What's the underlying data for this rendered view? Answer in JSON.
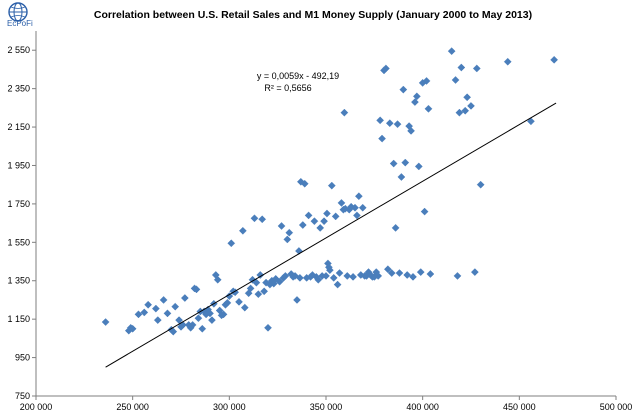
{
  "logo": {
    "text": "EcPoFi"
  },
  "chart_data": {
    "type": "scatter",
    "title": "Correlation between U.S. Retail Sales and M1 Money Supply (January 2000  to May 2013)",
    "xlabel": "",
    "ylabel": "",
    "xlim": [
      200000,
      500000
    ],
    "ylim": [
      750,
      2650
    ],
    "xticks": [
      200000,
      250000,
      300000,
      350000,
      400000,
      450000,
      500000
    ],
    "xtick_labels": [
      "200 000",
      "250 000",
      "300 000",
      "350 000",
      "400 000",
      "450 000",
      "500 000"
    ],
    "yticks": [
      750,
      950,
      1150,
      1350,
      1550,
      1750,
      1950,
      2150,
      2350,
      2550
    ],
    "ytick_labels": [
      "750",
      "950",
      "1 150",
      "1 350",
      "1 550",
      "1 750",
      "1 950",
      "2 150",
      "2 350",
      "2 550"
    ],
    "grid": false,
    "marker_color": "#4a7ebb",
    "trendline": {
      "slope": 0.0059,
      "intercept": -492.19,
      "x_range": [
        236000,
        469000
      ],
      "equation_label": "y = 0,0059x - 492,19",
      "r2_label": "R² = 0,5656",
      "color": "#000000"
    },
    "series": [
      {
        "points": [
          [
            236000,
            1135
          ],
          [
            248000,
            1090
          ],
          [
            249000,
            1105
          ],
          [
            250000,
            1100
          ],
          [
            253000,
            1175
          ],
          [
            256000,
            1185
          ],
          [
            258000,
            1225
          ],
          [
            262000,
            1205
          ],
          [
            263000,
            1145
          ],
          [
            266000,
            1250
          ],
          [
            268000,
            1180
          ],
          [
            270000,
            1095
          ],
          [
            271000,
            1085
          ],
          [
            272000,
            1215
          ],
          [
            274000,
            1145
          ],
          [
            275000,
            1110
          ],
          [
            276000,
            1120
          ],
          [
            277000,
            1260
          ],
          [
            279000,
            1120
          ],
          [
            280000,
            1105
          ],
          [
            281000,
            1120
          ],
          [
            282000,
            1310
          ],
          [
            283000,
            1305
          ],
          [
            284000,
            1155
          ],
          [
            285000,
            1190
          ],
          [
            286000,
            1100
          ],
          [
            287000,
            1190
          ],
          [
            288000,
            1175
          ],
          [
            289000,
            1200
          ],
          [
            290000,
            1180
          ],
          [
            291000,
            1145
          ],
          [
            292000,
            1230
          ],
          [
            293000,
            1380
          ],
          [
            294000,
            1355
          ],
          [
            295000,
            1195
          ],
          [
            296000,
            1170
          ],
          [
            297000,
            1175
          ],
          [
            298000,
            1225
          ],
          [
            299000,
            1235
          ],
          [
            300000,
            1270
          ],
          [
            301000,
            1545
          ],
          [
            302000,
            1295
          ],
          [
            303000,
            1290
          ],
          [
            305000,
            1240
          ],
          [
            307000,
            1610
          ],
          [
            308000,
            1210
          ],
          [
            310000,
            1285
          ],
          [
            311000,
            1310
          ],
          [
            312000,
            1355
          ],
          [
            313000,
            1675
          ],
          [
            314000,
            1340
          ],
          [
            315000,
            1280
          ],
          [
            316000,
            1380
          ],
          [
            317000,
            1670
          ],
          [
            318000,
            1295
          ],
          [
            319000,
            1340
          ],
          [
            320000,
            1105
          ],
          [
            321000,
            1330
          ],
          [
            322000,
            1350
          ],
          [
            323000,
            1335
          ],
          [
            324000,
            1360
          ],
          [
            326000,
            1345
          ],
          [
            327000,
            1635
          ],
          [
            328000,
            1365
          ],
          [
            329000,
            1375
          ],
          [
            330000,
            1565
          ],
          [
            331000,
            1600
          ],
          [
            332000,
            1385
          ],
          [
            333000,
            1370
          ],
          [
            334000,
            1375
          ],
          [
            335000,
            1250
          ],
          [
            336000,
            1505
          ],
          [
            336500,
            1365
          ],
          [
            337000,
            1865
          ],
          [
            338000,
            1640
          ],
          [
            339000,
            1855
          ],
          [
            340000,
            1365
          ],
          [
            341000,
            1690
          ],
          [
            342000,
            1370
          ],
          [
            343000,
            1380
          ],
          [
            344000,
            1660
          ],
          [
            345000,
            1370
          ],
          [
            346000,
            1355
          ],
          [
            347000,
            1625
          ],
          [
            348000,
            1375
          ],
          [
            349000,
            1660
          ],
          [
            350000,
            1375
          ],
          [
            350500,
            1700
          ],
          [
            351000,
            1440
          ],
          [
            351500,
            1420
          ],
          [
            352000,
            1405
          ],
          [
            353000,
            1845
          ],
          [
            354000,
            1365
          ],
          [
            355000,
            1685
          ],
          [
            356000,
            1330
          ],
          [
            357000,
            1390
          ],
          [
            358000,
            1755
          ],
          [
            359000,
            1720
          ],
          [
            359500,
            2225
          ],
          [
            360000,
            1725
          ],
          [
            361000,
            1375
          ],
          [
            362000,
            1720
          ],
          [
            363000,
            1735
          ],
          [
            364000,
            1370
          ],
          [
            365000,
            1730
          ],
          [
            366000,
            1690
          ],
          [
            367000,
            1790
          ],
          [
            368000,
            1380
          ],
          [
            369000,
            1730
          ],
          [
            370000,
            1375
          ],
          [
            371000,
            1375
          ],
          [
            372000,
            1395
          ],
          [
            373000,
            1380
          ],
          [
            374000,
            1370
          ],
          [
            375000,
            1370
          ],
          [
            376000,
            1395
          ],
          [
            377000,
            1375
          ],
          [
            378000,
            2185
          ],
          [
            379000,
            2090
          ],
          [
            380000,
            2445
          ],
          [
            381000,
            2455
          ],
          [
            382000,
            1410
          ],
          [
            383000,
            2170
          ],
          [
            384000,
            1390
          ],
          [
            385000,
            1960
          ],
          [
            386000,
            1625
          ],
          [
            387000,
            2165
          ],
          [
            388000,
            1390
          ],
          [
            389000,
            1890
          ],
          [
            390000,
            2345
          ],
          [
            391000,
            1965
          ],
          [
            392000,
            1380
          ],
          [
            393000,
            2155
          ],
          [
            394000,
            2130
          ],
          [
            395000,
            1370
          ],
          [
            396000,
            2280
          ],
          [
            397000,
            2310
          ],
          [
            398000,
            1945
          ],
          [
            399000,
            1395
          ],
          [
            400000,
            2380
          ],
          [
            401000,
            1710
          ],
          [
            402000,
            2390
          ],
          [
            403000,
            2245
          ],
          [
            404000,
            1385
          ],
          [
            415000,
            2545
          ],
          [
            417000,
            2395
          ],
          [
            418000,
            1375
          ],
          [
            419000,
            2225
          ],
          [
            420000,
            2460
          ],
          [
            422000,
            2235
          ],
          [
            423000,
            2305
          ],
          [
            425000,
            2260
          ],
          [
            427000,
            1395
          ],
          [
            428000,
            2455
          ],
          [
            430000,
            1850
          ],
          [
            444000,
            2490
          ],
          [
            456000,
            2180
          ],
          [
            468000,
            2500
          ]
        ]
      }
    ]
  }
}
